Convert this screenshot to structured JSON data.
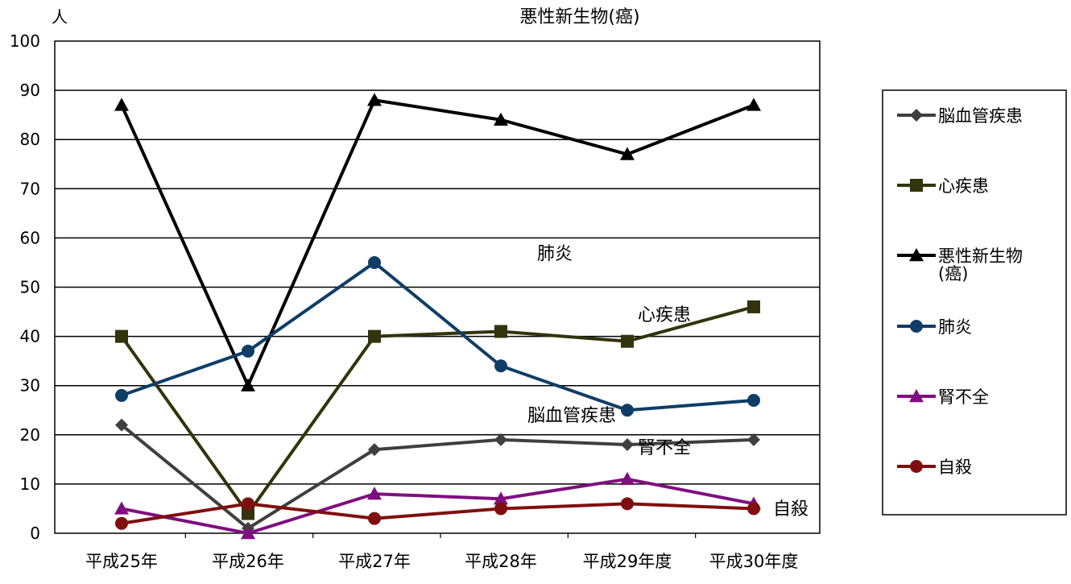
{
  "chart_data": {
    "type": "line",
    "title": "",
    "ylabel": "人",
    "xlabel": "",
    "categories": [
      "平成25年",
      "平成26年",
      "平成27年",
      "平成28年",
      "平成29年度",
      "平成30年度"
    ],
    "ylim": [
      0,
      100
    ],
    "yticks": [
      0,
      10,
      20,
      30,
      40,
      50,
      60,
      70,
      80,
      90,
      100
    ],
    "grid": true,
    "legend_position": "right",
    "series": [
      {
        "name": "脳血管疾患",
        "color": "#3f3f3f",
        "marker": "diamond",
        "values": [
          22,
          1,
          17,
          19,
          18,
          19
        ]
      },
      {
        "name": "心疾患",
        "color": "#33330d",
        "marker": "square",
        "values": [
          40,
          4,
          40,
          41,
          39,
          46
        ]
      },
      {
        "name": "悪性新生物(癌)",
        "legend_lines": [
          "悪性新生物",
          "(癌)"
        ],
        "color": "#000000",
        "marker": "triangle",
        "values": [
          87,
          30,
          88,
          84,
          77,
          87
        ]
      },
      {
        "name": "肺炎",
        "color": "#0f3d66",
        "marker": "circle",
        "values": [
          28,
          37,
          55,
          34,
          25,
          27
        ]
      },
      {
        "name": "腎不全",
        "color": "#7f0f7f",
        "marker": "triangle",
        "values": [
          5,
          0,
          8,
          7,
          11,
          6
        ]
      },
      {
        "name": "自殺",
        "color": "#7f0f0f",
        "marker": "circle",
        "values": [
          2,
          6,
          3,
          5,
          6,
          5
        ]
      }
    ],
    "annotations": [
      {
        "text": "悪性新生物(癌)",
        "anchor": "top-center"
      },
      {
        "text": "肺炎",
        "anchor": "series-label"
      },
      {
        "text": "心疾患",
        "anchor": "series-label"
      },
      {
        "text": "脳血管疾患",
        "anchor": "series-label"
      },
      {
        "text": "腎不全",
        "anchor": "series-label"
      },
      {
        "text": "自殺",
        "anchor": "series-label"
      }
    ]
  }
}
